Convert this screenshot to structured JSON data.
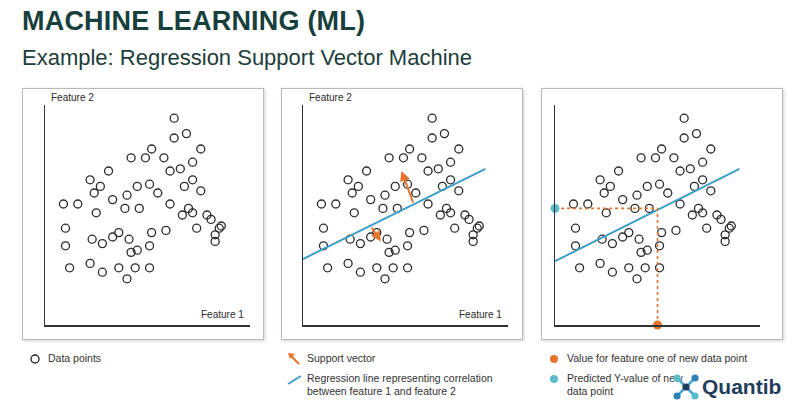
{
  "header": {
    "title": "MACHINE LEARNING (ML)",
    "subtitle": "Example: Regression Support Vector Machine"
  },
  "chart_data": [
    {
      "type": "scatter",
      "x_label": "Feature 1",
      "y_label": "Feature 2",
      "xlim": [
        0,
        100
      ],
      "ylim": [
        0,
        100
      ],
      "xticks": [],
      "yticks": [],
      "tick_labels": false,
      "grid": false,
      "series": [
        {
          "name": "Data points",
          "type": "scatter",
          "marker": "circle-open",
          "color": "#2b2b2b",
          "x": [
            63,
            52,
            63,
            69,
            76,
            42,
            49,
            31,
            22,
            58,
            66,
            72,
            61,
            72,
            68,
            45,
            27,
            24,
            40,
            51,
            55,
            33,
            9,
            16,
            46,
            39,
            61,
            67,
            72,
            70,
            79,
            86,
            81,
            25,
            10,
            10,
            23,
            28,
            33,
            36,
            41,
            52,
            59,
            83,
            85,
            74,
            28,
            22,
            36,
            44,
            51,
            42,
            12,
            40,
            83,
            51,
            45,
            76
          ],
          "y": [
            94,
            80,
            85,
            87,
            80,
            76,
            76,
            70,
            66,
            76,
            71,
            74,
            70,
            66,
            63,
            63,
            63,
            60,
            59,
            64,
            60,
            57,
            55,
            55,
            53,
            53,
            55,
            50,
            51,
            53,
            50,
            45,
            48,
            51,
            44,
            36,
            39,
            37,
            40,
            42,
            39,
            42,
            43,
            41,
            44,
            44,
            24,
            28,
            26,
            26,
            26,
            33,
            26,
            21,
            38,
            36,
            34,
            61
          ]
        }
      ]
    },
    {
      "type": "scatter",
      "x_label": "Feature 1",
      "y_label": "Feature 2",
      "xlim": [
        0,
        100
      ],
      "ylim": [
        0,
        100
      ],
      "xticks": [],
      "yticks": [],
      "tick_labels": false,
      "grid": false,
      "series": [
        {
          "type": "scatter",
          "marker": "circle-open",
          "color": "#2b2b2b",
          "x": [
            63,
            52,
            63,
            69,
            76,
            42,
            49,
            31,
            22,
            58,
            66,
            72,
            61,
            72,
            68,
            45,
            27,
            24,
            40,
            51,
            55,
            33,
            9,
            16,
            46,
            39,
            61,
            67,
            72,
            70,
            79,
            86,
            81,
            25,
            10,
            10,
            23,
            28,
            33,
            36,
            41,
            52,
            59,
            83,
            85,
            74,
            28,
            22,
            36,
            44,
            51,
            42,
            12,
            40,
            83,
            51,
            45,
            76
          ],
          "y": [
            94,
            80,
            85,
            87,
            80,
            76,
            76,
            70,
            66,
            76,
            71,
            74,
            70,
            66,
            63,
            63,
            63,
            60,
            59,
            64,
            60,
            57,
            55,
            55,
            53,
            53,
            55,
            50,
            51,
            53,
            50,
            45,
            48,
            51,
            44,
            36,
            39,
            37,
            40,
            42,
            39,
            42,
            43,
            41,
            44,
            44,
            24,
            28,
            26,
            26,
            26,
            33,
            26,
            21,
            38,
            36,
            34,
            61
          ]
        },
        {
          "name": "Support vector",
          "type": "arrow",
          "color": "#e8732a",
          "arrows": [
            {
              "x": [
                54,
                48
              ],
              "y": [
                55,
                70
              ]
            },
            {
              "x": [
                33,
                38
              ],
              "y": [
                45,
                38
              ]
            }
          ]
        },
        {
          "name": "Regression line representing correlation between feature 1 and feature 2",
          "type": "line",
          "line_style": "solid",
          "color": "#3d9fc9",
          "x": [
            0,
            89
          ],
          "y": [
            30,
            71
          ]
        }
      ]
    },
    {
      "type": "scatter",
      "xlim": [
        0,
        100
      ],
      "ylim": [
        0,
        100
      ],
      "xticks": [],
      "yticks": [],
      "tick_labels": false,
      "grid": false,
      "series": [
        {
          "type": "scatter",
          "marker": "circle-open",
          "color": "#2b2b2b",
          "x": [
            63,
            52,
            63,
            69,
            76,
            42,
            49,
            31,
            22,
            58,
            66,
            72,
            61,
            72,
            68,
            45,
            27,
            24,
            40,
            51,
            55,
            33,
            9,
            16,
            46,
            39,
            61,
            67,
            72,
            70,
            79,
            86,
            81,
            25,
            10,
            10,
            23,
            28,
            33,
            36,
            41,
            52,
            59,
            83,
            85,
            74,
            28,
            22,
            36,
            44,
            51,
            42,
            12,
            40,
            83,
            51,
            45,
            76
          ],
          "y": [
            94,
            80,
            85,
            87,
            80,
            76,
            76,
            70,
            66,
            76,
            71,
            74,
            70,
            66,
            63,
            63,
            63,
            60,
            59,
            64,
            60,
            57,
            55,
            55,
            53,
            53,
            55,
            50,
            51,
            53,
            50,
            45,
            48,
            51,
            44,
            36,
            39,
            37,
            40,
            42,
            39,
            42,
            43,
            41,
            44,
            44,
            24,
            28,
            26,
            26,
            26,
            33,
            26,
            21,
            38,
            36,
            34,
            61
          ]
        },
        {
          "type": "line",
          "line_style": "solid",
          "color": "#3d9fc9",
          "x": [
            0,
            90
          ],
          "y": [
            29,
            71
          ]
        },
        {
          "name": "Value for feature one of new data point",
          "type": "point",
          "marker": "circle",
          "line_style": "dotted",
          "color": "#e8732a",
          "x": [
            50
          ],
          "y": [
            0
          ]
        },
        {
          "name": "Predicted Y-value of new data point",
          "type": "point",
          "marker": "circle",
          "line_style": "dotted",
          "color": "#5bbcc9",
          "x": [
            0
          ],
          "y": [
            53
          ]
        }
      ]
    }
  ],
  "logo": "Quantib"
}
